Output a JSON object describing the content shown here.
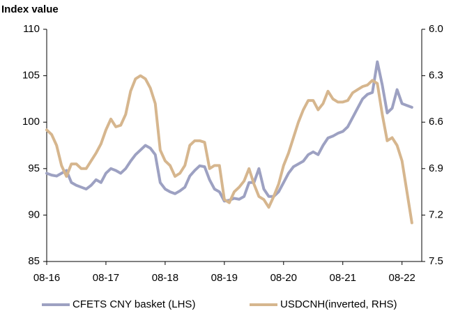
{
  "chart_data": {
    "type": "line",
    "y_axis_label": "Index value",
    "categories": [
      "08-16",
      null,
      null,
      null,
      null,
      null,
      null,
      null,
      null,
      null,
      null,
      null,
      "08-17",
      null,
      null,
      null,
      null,
      null,
      null,
      null,
      null,
      null,
      null,
      null,
      "08-18",
      null,
      null,
      null,
      null,
      null,
      null,
      null,
      null,
      null,
      null,
      null,
      "08-19",
      null,
      null,
      null,
      null,
      null,
      null,
      null,
      null,
      null,
      null,
      null,
      "08-20",
      null,
      null,
      null,
      null,
      null,
      null,
      null,
      null,
      null,
      null,
      null,
      "08-21",
      null,
      null,
      null,
      null,
      null,
      null,
      null,
      null,
      null,
      null,
      null,
      "08-22",
      null,
      null,
      null,
      null
    ],
    "series": [
      {
        "name": "CFETS CNY basket (LHS)",
        "color": "#9da1c2",
        "axis": "y",
        "values": [
          94.5,
          94.3,
          94.2,
          94.5,
          94.8,
          93.5,
          93.2,
          93.0,
          92.8,
          93.2,
          93.8,
          93.5,
          94.5,
          95.0,
          94.8,
          94.5,
          95.0,
          95.8,
          96.5,
          97.0,
          97.5,
          97.2,
          96.5,
          93.5,
          92.8,
          92.5,
          92.3,
          92.6,
          93.0,
          94.2,
          94.8,
          95.3,
          95.2,
          93.8,
          92.8,
          92.5,
          91.5,
          91.6,
          91.8,
          91.7,
          92.0,
          93.5,
          93.5,
          95.0,
          92.8,
          92.0,
          92.0,
          92.5,
          93.5,
          94.5,
          95.2,
          95.5,
          95.8,
          96.5,
          96.8,
          96.5,
          97.5,
          98.3,
          98.5,
          98.8,
          99.0,
          99.5,
          100.5,
          101.5,
          102.5,
          103.0,
          103.2,
          106.5,
          104.0,
          101.0,
          101.5,
          103.5,
          102.0,
          101.8,
          101.6,
          null,
          null
        ]
      },
      {
        "name": "USDCNH(inverted, RHS)",
        "color": "#d6b68e",
        "axis": "y2",
        "values": [
          6.65,
          6.68,
          6.75,
          6.88,
          6.95,
          6.87,
          6.87,
          6.9,
          6.9,
          6.85,
          6.8,
          6.74,
          6.65,
          6.58,
          6.63,
          6.62,
          6.55,
          6.4,
          6.32,
          6.3,
          6.32,
          6.38,
          6.48,
          6.78,
          6.85,
          6.88,
          6.95,
          6.93,
          6.88,
          6.75,
          6.72,
          6.72,
          6.73,
          6.9,
          6.88,
          6.88,
          7.1,
          7.12,
          7.05,
          7.02,
          6.98,
          6.9,
          7.0,
          7.08,
          7.1,
          7.15,
          7.08,
          7.0,
          6.88,
          6.8,
          6.7,
          6.6,
          6.52,
          6.46,
          6.46,
          6.52,
          6.48,
          6.4,
          6.45,
          6.47,
          6.47,
          6.46,
          6.41,
          6.39,
          6.37,
          6.36,
          6.33,
          6.35,
          6.55,
          6.72,
          6.7,
          6.75,
          6.85,
          7.05,
          7.25,
          null,
          null
        ]
      }
    ],
    "ylim": [
      85,
      110
    ],
    "yticks": [
      85,
      90,
      95,
      100,
      105,
      110
    ],
    "y2lim": [
      6.0,
      7.5
    ],
    "y2ticks": [
      {
        "value": 6.0,
        "label": "6.0"
      },
      6.3,
      6.6,
      6.9,
      7.2,
      7.5
    ],
    "y2_inverted": true,
    "legend": "bottom"
  }
}
